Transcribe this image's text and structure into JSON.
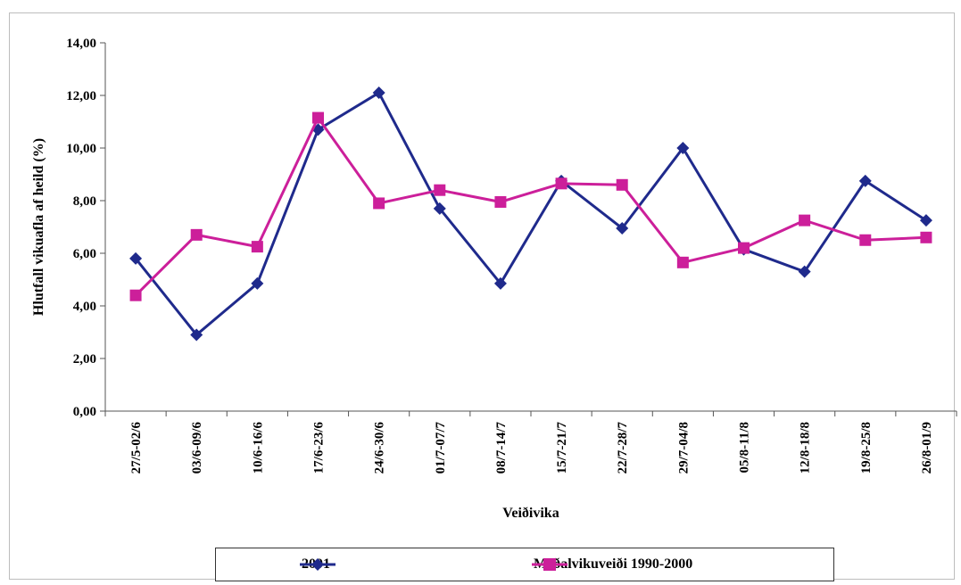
{
  "chart_data": {
    "type": "line",
    "title": "",
    "xlabel": "Veiðivika",
    "ylabel": "Hlutfall vikuafla af heild (%)",
    "ylim": [
      0,
      14
    ],
    "yticks": [
      "0,00",
      "2,00",
      "4,00",
      "6,00",
      "8,00",
      "10,00",
      "12,00",
      "14,00"
    ],
    "categories": [
      "27/5-02/6",
      "03/6-09/6",
      "10/6-16/6",
      "17/6-23/6",
      "24/6-30/6",
      "01/7-07/7",
      "08/7-14/7",
      "15/7-21/7",
      "22/7-28/7",
      "29/7-04/8",
      "05/8-11/8",
      "12/8-18/8",
      "19/8-25/8",
      "26/8-01/9"
    ],
    "series": [
      {
        "name": "2001",
        "color": "#1f2a8c",
        "marker": "diamond",
        "values": [
          5.8,
          2.9,
          4.85,
          10.7,
          12.1,
          7.7,
          4.85,
          8.75,
          6.95,
          10.0,
          6.15,
          5.3,
          8.75,
          7.25
        ]
      },
      {
        "name": "Meðalvikuveiði 1990-2000",
        "color": "#cc1f9a",
        "marker": "square",
        "values": [
          4.4,
          6.7,
          6.25,
          11.15,
          7.9,
          8.4,
          7.95,
          8.65,
          8.6,
          5.65,
          6.2,
          7.25,
          6.5,
          6.6
        ]
      }
    ],
    "grid": false,
    "legend_position": "bottom"
  }
}
